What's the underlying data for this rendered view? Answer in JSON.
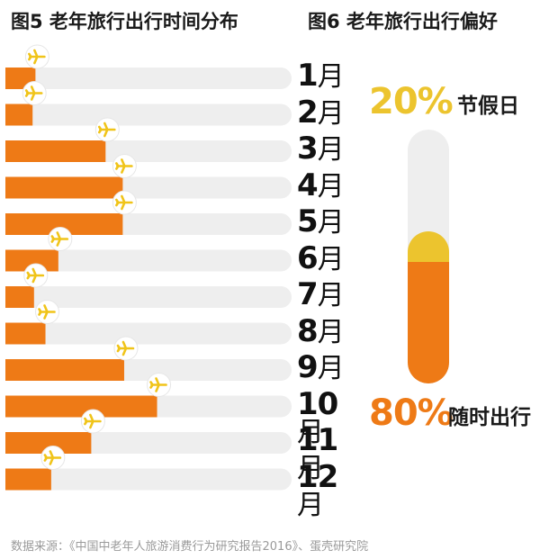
{
  "fig5": {
    "title": "图5 老年旅行出行时间分布"
  },
  "fig6": {
    "title": "图6 老年旅行出行偏好"
  },
  "chart_data": [
    {
      "type": "bar",
      "orientation": "horizontal",
      "title": "图5 老年旅行出行时间分布",
      "categories": [
        "1月",
        "2月",
        "3月",
        "4月",
        "5月",
        "6月",
        "7月",
        "8月",
        "9月",
        "10月",
        "11月",
        "12月"
      ],
      "values": [
        10.5,
        9.5,
        35,
        41,
        41,
        18.5,
        10,
        14,
        41.5,
        53,
        30,
        16
      ],
      "value_unit": "% of bar track",
      "ylim": [
        0,
        100
      ],
      "colors": {
        "bar": "#ee7a16",
        "track": "#eeeeee",
        "plane": "#f0c419"
      },
      "icon": "airplane-icon"
    },
    {
      "type": "bar",
      "orientation": "vertical-stacked",
      "title": "图6 老年旅行出行偏好",
      "series": [
        {
          "name": "节假日",
          "value": 20,
          "label": "20%",
          "color": "#ecc42e"
        },
        {
          "name": "随时出行",
          "value": 80,
          "label": "80%",
          "color": "#ee7a16"
        }
      ]
    }
  ],
  "month_suffix": "月",
  "source": "数据来源：《中国中老年人旅游消费行为研究报告2016》、蛋壳研究院"
}
